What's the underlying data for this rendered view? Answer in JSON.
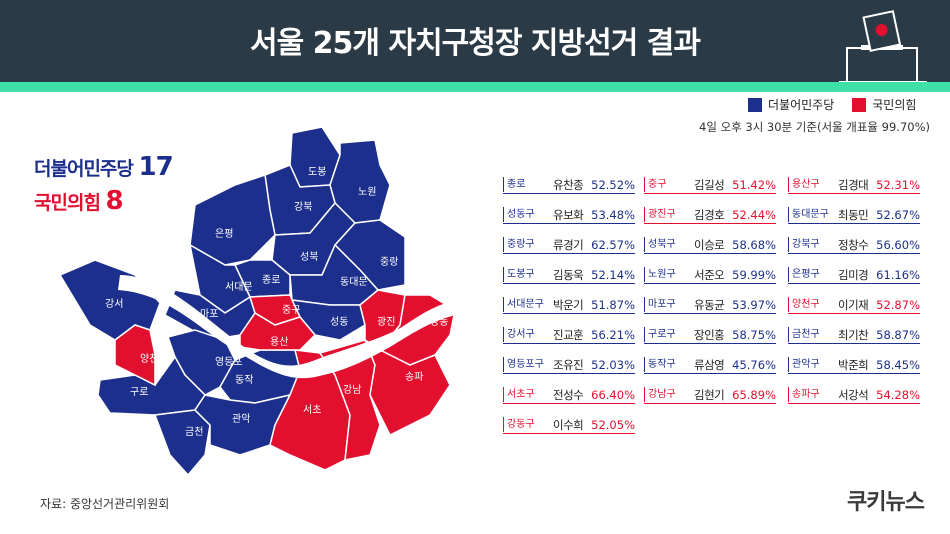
{
  "title": "서울 25개 자치구청장 지방선거 결과",
  "legend": {
    "democratic": "더불어민주당",
    "ppp": "국민의힘"
  },
  "colors": {
    "democratic": "#1d2f8d",
    "ppp": "#e20f2f",
    "header": "#2b3a47",
    "accent": "#3ee0a8"
  },
  "timestamp": "4일 오후 3시 30분 기준(서울 개표율 99.70%)",
  "summary": {
    "democratic_label": "더불어민주당",
    "democratic_count": "17",
    "ppp_label": "국민의힘",
    "ppp_count": "8"
  },
  "map_labels": [
    "도봉",
    "노원",
    "강북",
    "은평",
    "성북",
    "중랑",
    "종로",
    "동대문",
    "서대문",
    "마포",
    "중구",
    "성동",
    "광진",
    "강동",
    "강서",
    "용산",
    "양천",
    "영등포",
    "동작",
    "강남",
    "송파",
    "구로",
    "서초",
    "관악",
    "금천"
  ],
  "results": [
    {
      "district": "종로",
      "name": "유찬종",
      "pct": "52.52%",
      "party": "blue"
    },
    {
      "district": "중구",
      "name": "김길성",
      "pct": "51.42%",
      "party": "red"
    },
    {
      "district": "용산구",
      "name": "김경대",
      "pct": "52.31%",
      "party": "red"
    },
    {
      "district": "성동구",
      "name": "유보화",
      "pct": "53.48%",
      "party": "blue"
    },
    {
      "district": "광진구",
      "name": "김경호",
      "pct": "52.44%",
      "party": "red"
    },
    {
      "district": "동대문구",
      "name": "최동민",
      "pct": "52.67%",
      "party": "blue"
    },
    {
      "district": "중랑구",
      "name": "류경기",
      "pct": "62.57%",
      "party": "blue"
    },
    {
      "district": "성북구",
      "name": "이승로",
      "pct": "58.68%",
      "party": "blue"
    },
    {
      "district": "강북구",
      "name": "정창수",
      "pct": "56.60%",
      "party": "blue"
    },
    {
      "district": "도봉구",
      "name": "김동욱",
      "pct": "52.14%",
      "party": "blue"
    },
    {
      "district": "노원구",
      "name": "서준오",
      "pct": "59.99%",
      "party": "blue"
    },
    {
      "district": "은평구",
      "name": "김미경",
      "pct": "61.16%",
      "party": "blue"
    },
    {
      "district": "서대문구",
      "name": "박운기",
      "pct": "51.87%",
      "party": "blue"
    },
    {
      "district": "마포구",
      "name": "유동균",
      "pct": "53.97%",
      "party": "blue"
    },
    {
      "district": "양천구",
      "name": "이기재",
      "pct": "52.87%",
      "party": "red"
    },
    {
      "district": "강서구",
      "name": "진교훈",
      "pct": "56.21%",
      "party": "blue"
    },
    {
      "district": "구로구",
      "name": "장인홍",
      "pct": "58.75%",
      "party": "blue"
    },
    {
      "district": "금천구",
      "name": "최기찬",
      "pct": "58.87%",
      "party": "blue"
    },
    {
      "district": "영등포구",
      "name": "조유진",
      "pct": "52.03%",
      "party": "blue"
    },
    {
      "district": "동작구",
      "name": "류삼영",
      "pct": "45.76%",
      "party": "blue"
    },
    {
      "district": "관악구",
      "name": "박준희",
      "pct": "58.45%",
      "party": "blue"
    },
    {
      "district": "서초구",
      "name": "전성수",
      "pct": "66.40%",
      "party": "red"
    },
    {
      "district": "강남구",
      "name": "김현기",
      "pct": "65.89%",
      "party": "red"
    },
    {
      "district": "송파구",
      "name": "서강석",
      "pct": "54.28%",
      "party": "red"
    },
    {
      "district": "강동구",
      "name": "이수희",
      "pct": "52.05%",
      "party": "red"
    }
  ],
  "source": "자료: 중앙선거관리위원회",
  "brand": "쿠키뉴스"
}
